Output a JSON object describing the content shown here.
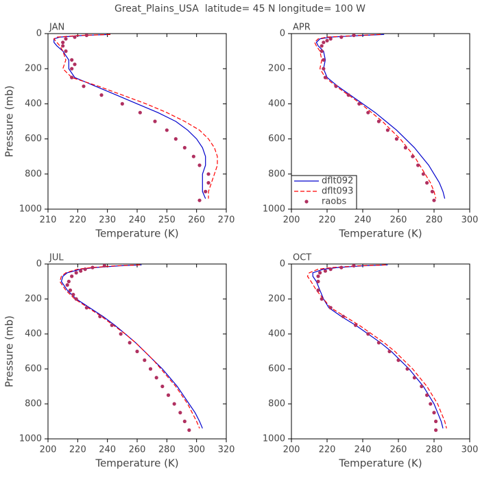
{
  "title": "Great_Plains_USA  latitude= 45 N longitude= 100 W",
  "chart_data": [
    {
      "type": "line",
      "title": "JAN",
      "xlabel": "Temperature (K)",
      "ylabel": "Pressure (mb)",
      "xlim": [
        210,
        270
      ],
      "xticks": [
        210,
        220,
        230,
        240,
        250,
        260,
        270
      ],
      "ylim": [
        0,
        1000
      ],
      "yticks": [
        0,
        200,
        400,
        600,
        800,
        1000
      ],
      "yinverted": true,
      "series": [
        {
          "color": "#0000cc",
          "style": "solid",
          "levels": [
            5,
            10,
            20,
            30,
            50,
            70,
            100,
            150,
            200,
            250,
            300,
            350,
            400,
            450,
            500,
            550,
            600,
            650,
            700,
            750,
            800,
            850,
            900,
            940
          ],
          "values": [
            231,
            222,
            214,
            212,
            212,
            213,
            215,
            217,
            217,
            219,
            226,
            233,
            240,
            247,
            253,
            257,
            260,
            262,
            263,
            263,
            262,
            262,
            262,
            263
          ]
        },
        {
          "color": "#ff0000",
          "style": "dashed",
          "levels": [
            5,
            10,
            20,
            30,
            50,
            70,
            100,
            150,
            200,
            250,
            300,
            350,
            400,
            450,
            500,
            550,
            600,
            650,
            700,
            750,
            800,
            850,
            900,
            940
          ],
          "values": [
            231,
            221,
            213,
            212,
            213,
            214,
            215,
            216,
            215,
            218,
            227,
            235,
            243,
            250,
            256,
            261,
            264,
            266,
            267,
            267,
            266,
            265,
            264,
            264
          ]
        },
        {
          "color": "#b03060",
          "style": "markers",
          "levels": [
            10,
            20,
            30,
            50,
            70,
            100,
            150,
            175,
            200,
            250,
            300,
            350,
            400,
            450,
            500,
            550,
            600,
            650,
            700,
            750,
            800,
            850,
            900,
            950
          ],
          "values": [
            223,
            219,
            216,
            215,
            215,
            216,
            218,
            219,
            218,
            218,
            222,
            228,
            235,
            241,
            246,
            250,
            253,
            256,
            259,
            261,
            264,
            264,
            263,
            261
          ]
        }
      ]
    },
    {
      "type": "line",
      "title": "APR",
      "xlabel": "Temperature (K)",
      "xlim": [
        200,
        300
      ],
      "xticks": [
        200,
        220,
        240,
        260,
        280,
        300
      ],
      "ylim": [
        0,
        1000
      ],
      "yticks": [
        0,
        200,
        400,
        600,
        800,
        1000
      ],
      "yinverted": true,
      "legend": "lower left",
      "series": [
        {
          "name": "dflt092",
          "color": "#0000cc",
          "style": "solid",
          "levels": [
            5,
            10,
            20,
            30,
            50,
            70,
            100,
            150,
            200,
            250,
            300,
            350,
            400,
            450,
            500,
            550,
            600,
            650,
            700,
            750,
            800,
            850,
            900,
            940
          ],
          "values": [
            252,
            240,
            222,
            216,
            214,
            215,
            218,
            219,
            218,
            220,
            226,
            233,
            240,
            247,
            253,
            259,
            264,
            269,
            273,
            277,
            280,
            283,
            285,
            286
          ]
        },
        {
          "name": "dflt093",
          "color": "#ff0000",
          "style": "dashed",
          "levels": [
            5,
            10,
            20,
            30,
            50,
            70,
            100,
            150,
            200,
            250,
            300,
            350,
            400,
            450,
            500,
            550,
            600,
            650,
            700,
            750,
            800,
            850,
            900,
            940
          ],
          "values": [
            250,
            238,
            220,
            215,
            213,
            214,
            216,
            217,
            216,
            219,
            225,
            232,
            239,
            245,
            251,
            256,
            261,
            265,
            269,
            272,
            275,
            278,
            280,
            281
          ]
        },
        {
          "name": "raobs",
          "color": "#b03060",
          "style": "markers",
          "levels": [
            10,
            20,
            30,
            40,
            50,
            70,
            100,
            150,
            200,
            250,
            300,
            350,
            400,
            450,
            500,
            550,
            600,
            650,
            700,
            750,
            800,
            850,
            900,
            950
          ],
          "values": [
            235,
            228,
            222,
            220,
            218,
            217,
            217,
            218,
            218,
            219,
            225,
            232,
            238,
            243,
            249,
            254,
            259,
            264,
            268,
            271,
            274,
            276,
            279,
            280
          ]
        }
      ]
    },
    {
      "type": "line",
      "title": "JUL",
      "xlabel": "Temperature (K)",
      "ylabel": "Pressure (mb)",
      "xlim": [
        200,
        320
      ],
      "xticks": [
        200,
        220,
        240,
        260,
        280,
        300,
        320
      ],
      "ylim": [
        0,
        1000
      ],
      "yticks": [
        0,
        200,
        400,
        600,
        800,
        1000
      ],
      "yinverted": true,
      "series": [
        {
          "color": "#0000cc",
          "style": "solid",
          "levels": [
            5,
            10,
            20,
            30,
            50,
            70,
            100,
            150,
            200,
            250,
            300,
            350,
            400,
            450,
            500,
            550,
            600,
            650,
            700,
            750,
            800,
            850,
            900,
            940
          ],
          "values": [
            263,
            248,
            232,
            222,
            213,
            210,
            209,
            213,
            219,
            228,
            237,
            245,
            252,
            259,
            265,
            271,
            277,
            282,
            287,
            291,
            295,
            299,
            302,
            304
          ]
        },
        {
          "color": "#ff0000",
          "style": "dashed",
          "levels": [
            5,
            10,
            20,
            30,
            50,
            70,
            100,
            150,
            200,
            250,
            300,
            350,
            400,
            450,
            500,
            550,
            600,
            650,
            700,
            750,
            800,
            850,
            900,
            940
          ],
          "values": [
            262,
            246,
            230,
            220,
            212,
            209,
            208,
            212,
            218,
            227,
            236,
            244,
            252,
            259,
            265,
            271,
            276,
            281,
            286,
            290,
            294,
            297,
            300,
            302
          ]
        },
        {
          "color": "#b03060",
          "style": "markers",
          "levels": [
            10,
            20,
            30,
            40,
            50,
            70,
            100,
            120,
            150,
            175,
            200,
            250,
            300,
            350,
            400,
            450,
            500,
            550,
            600,
            650,
            700,
            750,
            800,
            850,
            900,
            950
          ],
          "values": [
            238,
            230,
            225,
            222,
            219,
            216,
            214,
            213,
            215,
            217,
            219,
            226,
            235,
            243,
            249,
            255,
            260,
            265,
            269,
            273,
            277,
            281,
            285,
            289,
            292,
            295
          ]
        }
      ]
    },
    {
      "type": "line",
      "title": "OCT",
      "xlabel": "Temperature (K)",
      "xlim": [
        200,
        300
      ],
      "xticks": [
        200,
        220,
        240,
        260,
        280,
        300
      ],
      "ylim": [
        0,
        1000
      ],
      "yticks": [
        0,
        200,
        400,
        600,
        800,
        1000
      ],
      "yinverted": true,
      "series": [
        {
          "color": "#0000cc",
          "style": "solid",
          "levels": [
            5,
            10,
            20,
            30,
            50,
            70,
            100,
            150,
            200,
            250,
            300,
            350,
            400,
            450,
            500,
            550,
            600,
            650,
            700,
            750,
            800,
            850,
            900,
            940
          ],
          "values": [
            254,
            240,
            226,
            218,
            212,
            212,
            214,
            216,
            218,
            221,
            228,
            236,
            243,
            250,
            256,
            261,
            266,
            270,
            274,
            277,
            280,
            282,
            284,
            285
          ]
        },
        {
          "color": "#ff0000",
          "style": "dashed",
          "levels": [
            5,
            10,
            20,
            30,
            50,
            70,
            100,
            150,
            200,
            250,
            300,
            350,
            400,
            450,
            500,
            550,
            600,
            650,
            700,
            750,
            800,
            850,
            900,
            940
          ],
          "values": [
            253,
            238,
            223,
            215,
            210,
            209,
            211,
            214,
            218,
            222,
            230,
            238,
            245,
            252,
            258,
            263,
            268,
            272,
            276,
            279,
            282,
            284,
            286,
            287
          ]
        },
        {
          "color": "#b03060",
          "style": "markers",
          "levels": [
            10,
            20,
            30,
            40,
            50,
            70,
            100,
            150,
            200,
            250,
            300,
            350,
            400,
            450,
            500,
            550,
            600,
            650,
            700,
            750,
            800,
            850,
            900,
            950
          ],
          "values": [
            235,
            228,
            222,
            219,
            216,
            215,
            215,
            215,
            217,
            222,
            229,
            236,
            243,
            249,
            255,
            260,
            265,
            269,
            273,
            276,
            278,
            280,
            281,
            281
          ]
        }
      ]
    }
  ]
}
